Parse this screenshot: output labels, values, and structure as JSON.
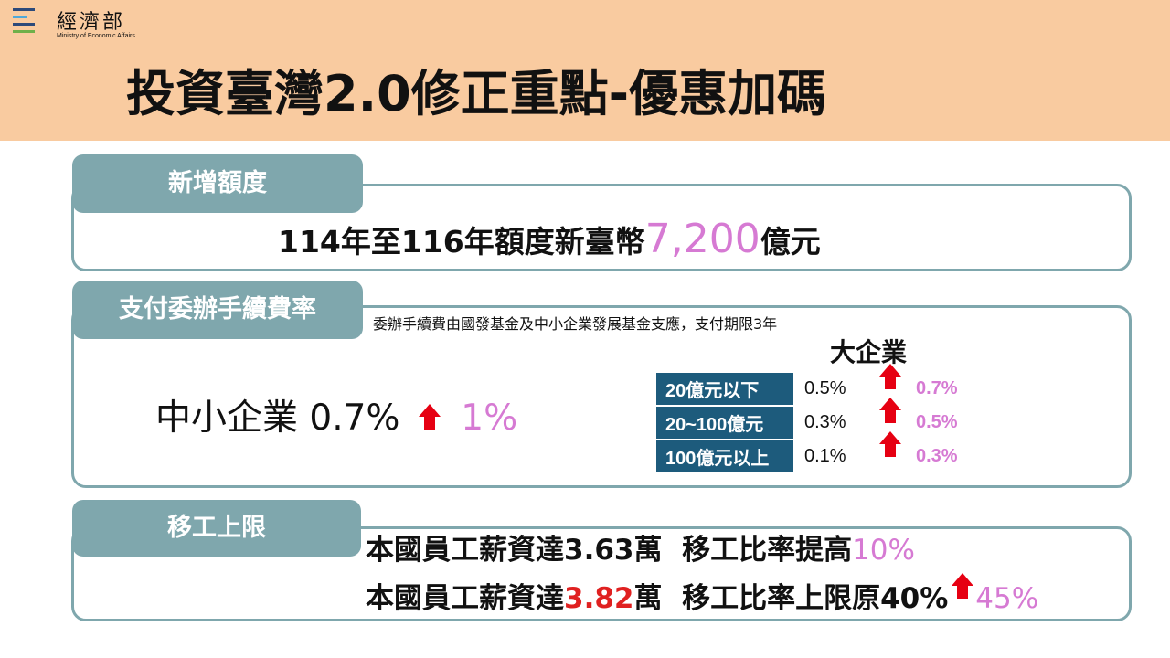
{
  "logo": {
    "name": "經濟部",
    "subtitle": "Ministry of Economic Affairs",
    "colors": [
      "#2d4a7a",
      "#4fa8d8",
      "#2d4a7a",
      "#6fb04a"
    ]
  },
  "title": "投資臺灣2.0修正重點-優惠加碼",
  "section1": {
    "tab": "新增額度",
    "line_prefix": "114年至116年額度新臺幣",
    "amount": "7,200",
    "line_suffix": "億元"
  },
  "section2": {
    "tab": "支付委辦手續費率",
    "note": "委辦手續費由國發基金及中小企業發展基金支應，支付期限3年",
    "sme_label": "中小企業 0.7%",
    "sme_new": "1%",
    "large_title": "大企業",
    "rates": [
      {
        "label": "20億元以下",
        "old": "0.5%",
        "new": "0.7%"
      },
      {
        "label": "20~100億元",
        "old": "0.3%",
        "new": "0.5%"
      },
      {
        "label": "100億元以上",
        "old": "0.1%",
        "new": "0.3%"
      }
    ]
  },
  "section3": {
    "tab": "移工上限",
    "line1_prefix": "本國員工薪資達3.63萬  移工比率提高",
    "line1_value": "10%",
    "line2_prefix": "本國員工薪資達",
    "line2_salary": "3.82",
    "line2_mid": "萬  移工比率上限原40%",
    "line2_value": "45%"
  },
  "colors": {
    "header_bg": "#f9cba0",
    "tab_bg": "#7fa7ad",
    "table_label_bg": "#1d5b7c",
    "highlight": "#d67ad3",
    "arrow": "#e60012"
  }
}
